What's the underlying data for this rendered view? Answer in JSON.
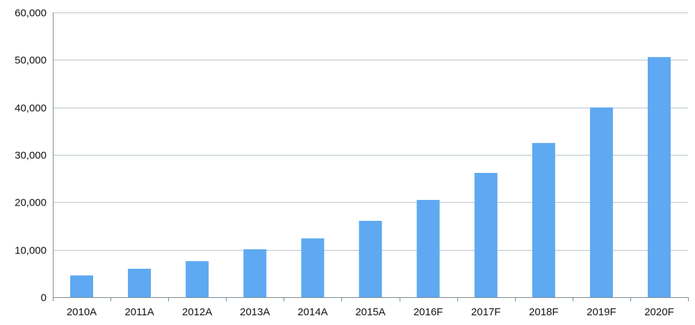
{
  "chart_data": {
    "type": "bar",
    "title": "",
    "xlabel": "",
    "ylabel": "",
    "categories": [
      "2010A",
      "2011A",
      "2012A",
      "2013A",
      "2014A",
      "2015A",
      "2016F",
      "2017F",
      "2018F",
      "2019F",
      "2020F"
    ],
    "values": [
      4600,
      6000,
      7600,
      10100,
      12400,
      16100,
      20500,
      26200,
      32500,
      40000,
      50600
    ],
    "ylim": [
      0,
      60000
    ],
    "yticks": [
      0,
      10000,
      20000,
      30000,
      40000,
      50000,
      60000
    ],
    "ytick_labels": [
      "0",
      "10,000",
      "20,000",
      "30,000",
      "40,000",
      "50,000",
      "60,000"
    ],
    "grid": true,
    "legend": "none",
    "bar_color": "#5ea9f1",
    "grid_color": "#b9c4cc"
  }
}
